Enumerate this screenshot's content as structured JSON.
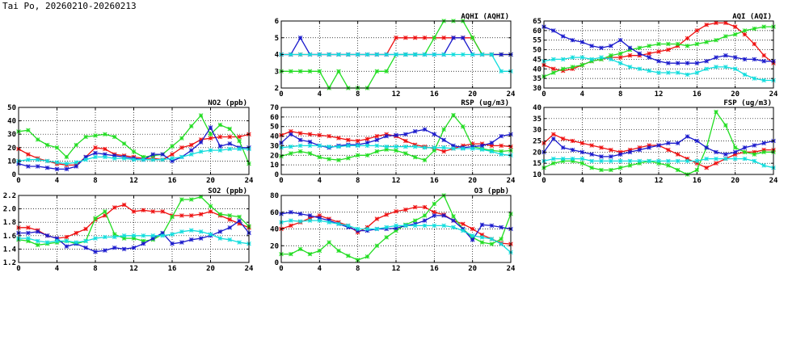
{
  "header": {
    "title": "Tai Po, 20260210-20260213"
  },
  "colors": {
    "red": "#ee1111",
    "green": "#22dd22",
    "blue": "#1a1acc",
    "cyan": "#11dddd"
  },
  "chart_data": [
    {
      "id": "aqhi",
      "type": "line",
      "title": "AQHI (AQHI)",
      "xlim": [
        0,
        24
      ],
      "ylim": [
        2,
        6
      ],
      "xticks": [
        "0",
        "4",
        "8",
        "12",
        "16",
        "20",
        "24"
      ],
      "yticks": [
        "2",
        "3",
        "4",
        "5",
        "6"
      ],
      "grid": true,
      "x": [
        0,
        1,
        2,
        3,
        4,
        5,
        6,
        7,
        8,
        9,
        10,
        11,
        12,
        13,
        14,
        15,
        16,
        17,
        18,
        19,
        20,
        21,
        22,
        23,
        24
      ],
      "series": [
        {
          "color": "red",
          "values": [
            4,
            4,
            4,
            4,
            4,
            4,
            4,
            4,
            4,
            4,
            4,
            4,
            5,
            5,
            5,
            5,
            5,
            5,
            5,
            5,
            5,
            4,
            4,
            4,
            4
          ]
        },
        {
          "color": "green",
          "values": [
            3,
            3,
            3,
            3,
            3,
            2,
            3,
            2,
            2,
            2,
            3,
            3,
            4,
            4,
            4,
            4,
            5,
            6,
            6,
            6,
            5,
            4,
            4,
            4,
            4
          ]
        },
        {
          "color": "blue",
          "values": [
            4,
            4,
            5,
            4,
            4,
            4,
            4,
            4,
            4,
            4,
            4,
            4,
            4,
            4,
            4,
            4,
            4,
            4,
            5,
            5,
            4,
            4,
            4,
            4,
            4
          ]
        },
        {
          "color": "cyan",
          "values": [
            4,
            4,
            4,
            4,
            4,
            4,
            4,
            4,
            4,
            4,
            4,
            4,
            4,
            4,
            4,
            4,
            4,
            4,
            4,
            4,
            4,
            4,
            4,
            3,
            3
          ]
        }
      ]
    },
    {
      "id": "aqi",
      "type": "line",
      "title": "AQI (AQI)",
      "xlim": [
        0,
        24
      ],
      "ylim": [
        30,
        65
      ],
      "xticks": [
        "0",
        "4",
        "8",
        "12",
        "16",
        "20",
        "24"
      ],
      "yticks": [
        "30",
        "35",
        "40",
        "45",
        "50",
        "55",
        "60",
        "65"
      ],
      "grid": true,
      "x": [
        0,
        1,
        2,
        3,
        4,
        5,
        6,
        7,
        8,
        9,
        10,
        11,
        12,
        13,
        14,
        15,
        16,
        17,
        18,
        19,
        20,
        21,
        22,
        23,
        24
      ],
      "series": [
        {
          "color": "red",
          "values": [
            42,
            40,
            39,
            40,
            42,
            44,
            45,
            46,
            46,
            47,
            47,
            48,
            49,
            50,
            52,
            56,
            60,
            63,
            64,
            64,
            62,
            58,
            53,
            47,
            43
          ]
        },
        {
          "color": "green",
          "values": [
            36,
            38,
            40,
            41,
            42,
            44,
            45,
            47,
            48,
            50,
            51,
            52,
            53,
            53,
            53,
            52,
            53,
            54,
            55,
            57,
            58,
            60,
            61,
            62,
            62
          ]
        },
        {
          "color": "blue",
          "values": [
            62,
            60,
            57,
            55,
            54,
            52,
            51,
            52,
            55,
            51,
            48,
            46,
            44,
            43,
            43,
            43,
            43,
            44,
            46,
            47,
            46,
            45,
            45,
            44,
            44
          ]
        },
        {
          "color": "cyan",
          "values": [
            44,
            45,
            45,
            46,
            46,
            45,
            46,
            45,
            43,
            41,
            40,
            39,
            38,
            38,
            38,
            37,
            38,
            40,
            41,
            41,
            40,
            37,
            35,
            34,
            34
          ]
        }
      ]
    },
    {
      "id": "no2",
      "type": "line",
      "title": "NO2 (ppb)",
      "xlim": [
        0,
        24
      ],
      "ylim": [
        0,
        50
      ],
      "xticks": [
        "0",
        "4",
        "8",
        "12",
        "16",
        "20",
        "24"
      ],
      "yticks": [
        "0",
        "10",
        "20",
        "30",
        "40",
        "50"
      ],
      "grid": true,
      "x": [
        0,
        1,
        2,
        3,
        4,
        5,
        6,
        7,
        8,
        9,
        10,
        11,
        12,
        13,
        14,
        15,
        16,
        17,
        18,
        19,
        20,
        21,
        22,
        23,
        24
      ],
      "series": [
        {
          "color": "red",
          "values": [
            19,
            15,
            12,
            10,
            8,
            7,
            7,
            13,
            20,
            19,
            15,
            14,
            13,
            12,
            12,
            11,
            15,
            20,
            22,
            26,
            27,
            28,
            28,
            28,
            30
          ]
        },
        {
          "color": "green",
          "values": [
            32,
            33,
            26,
            22,
            20,
            13,
            22,
            28,
            29,
            30,
            28,
            23,
            17,
            13,
            14,
            15,
            21,
            27,
            36,
            44,
            30,
            37,
            34,
            25,
            8
          ]
        },
        {
          "color": "blue",
          "values": [
            8,
            6,
            6,
            5,
            4,
            4,
            6,
            13,
            16,
            15,
            14,
            13,
            12,
            11,
            15,
            15,
            10,
            13,
            18,
            24,
            35,
            21,
            23,
            20,
            20
          ]
        },
        {
          "color": "cyan",
          "values": [
            10,
            11,
            11,
            10,
            9,
            8,
            9,
            11,
            13,
            13,
            12,
            12,
            11,
            11,
            11,
            11,
            12,
            13,
            15,
            17,
            18,
            18,
            19,
            19,
            19
          ]
        }
      ]
    },
    {
      "id": "rsp",
      "type": "line",
      "title": "RSP (ug/m3)",
      "xlim": [
        0,
        24
      ],
      "ylim": [
        0,
        70
      ],
      "xticks": [
        "0",
        "4",
        "8",
        "12",
        "16",
        "20",
        "24"
      ],
      "yticks": [
        "0",
        "10",
        "20",
        "30",
        "40",
        "50",
        "60",
        "70"
      ],
      "grid": true,
      "x": [
        0,
        1,
        2,
        3,
        4,
        5,
        6,
        7,
        8,
        9,
        10,
        11,
        12,
        13,
        14,
        15,
        16,
        17,
        18,
        19,
        20,
        21,
        22,
        23,
        24
      ],
      "series": [
        {
          "color": "red",
          "values": [
            41,
            45,
            43,
            42,
            41,
            40,
            38,
            36,
            35,
            37,
            40,
            42,
            40,
            35,
            31,
            29,
            27,
            24,
            27,
            30,
            32,
            32,
            30,
            30,
            29
          ]
        },
        {
          "color": "green",
          "values": [
            19,
            22,
            24,
            22,
            18,
            16,
            15,
            17,
            20,
            20,
            24,
            26,
            25,
            22,
            18,
            15,
            25,
            47,
            62,
            50,
            29,
            27,
            25,
            24,
            25
          ]
        },
        {
          "color": "blue",
          "values": [
            33,
            42,
            36,
            34,
            30,
            28,
            30,
            31,
            31,
            33,
            36,
            40,
            41,
            42,
            45,
            47,
            42,
            36,
            30,
            28,
            29,
            30,
            33,
            40,
            42
          ]
        },
        {
          "color": "cyan",
          "values": [
            28,
            29,
            30,
            30,
            30,
            29,
            29,
            30,
            30,
            30,
            30,
            29,
            29,
            29,
            29,
            28,
            28,
            28,
            27,
            27,
            27,
            26,
            24,
            21,
            20
          ]
        }
      ]
    },
    {
      "id": "fsp",
      "type": "line",
      "title": "FSP (ug/m3)",
      "xlim": [
        0,
        24
      ],
      "ylim": [
        10,
        40
      ],
      "xticks": [
        "0",
        "4",
        "8",
        "12",
        "16",
        "20",
        "24"
      ],
      "yticks": [
        "10",
        "15",
        "20",
        "25",
        "30",
        "35",
        "40"
      ],
      "grid": true,
      "x": [
        0,
        1,
        2,
        3,
        4,
        5,
        6,
        7,
        8,
        9,
        10,
        11,
        12,
        13,
        14,
        15,
        16,
        17,
        18,
        19,
        20,
        21,
        22,
        23,
        24
      ],
      "series": [
        {
          "color": "red",
          "values": [
            24,
            28,
            26,
            25,
            24,
            23,
            22,
            21,
            20,
            21,
            22,
            23,
            23,
            21,
            19,
            17,
            15,
            13,
            15,
            17,
            19,
            20,
            20,
            21,
            21
          ]
        },
        {
          "color": "green",
          "values": [
            13,
            15,
            16,
            16,
            15,
            13,
            12,
            12,
            13,
            14,
            15,
            16,
            15,
            14,
            12,
            10,
            12,
            22,
            38,
            32,
            22,
            20,
            19,
            20,
            20
          ]
        },
        {
          "color": "blue",
          "values": [
            20,
            26,
            22,
            21,
            20,
            19,
            18,
            18,
            19,
            20,
            21,
            22,
            23,
            24,
            24,
            27,
            25,
            22,
            20,
            19,
            20,
            22,
            23,
            24,
            25
          ]
        },
        {
          "color": "cyan",
          "values": [
            16,
            17,
            17,
            17,
            17,
            16,
            16,
            16,
            16,
            16,
            16,
            16,
            16,
            16,
            16,
            16,
            16,
            17,
            17,
            17,
            17,
            17,
            16,
            14,
            13
          ]
        }
      ]
    },
    {
      "id": "so2",
      "type": "line",
      "title": "SO2 (ppb)",
      "xlim": [
        0,
        24
      ],
      "ylim": [
        1.2,
        2.2
      ],
      "xticks": [
        "0",
        "4",
        "8",
        "12",
        "16",
        "20",
        "24"
      ],
      "yticks": [
        "1.2",
        "1.4",
        "1.6",
        "1.8",
        "2.0",
        "2.2"
      ],
      "grid": true,
      "x": [
        0,
        1,
        2,
        3,
        4,
        5,
        6,
        7,
        8,
        9,
        10,
        11,
        12,
        13,
        14,
        15,
        16,
        17,
        18,
        19,
        20,
        21,
        22,
        23,
        24
      ],
      "series": [
        {
          "color": "red",
          "values": [
            1.72,
            1.72,
            1.68,
            1.6,
            1.56,
            1.58,
            1.64,
            1.7,
            1.84,
            1.9,
            2.02,
            2.06,
            1.96,
            1.98,
            1.96,
            1.96,
            1.9,
            1.9,
            1.9,
            1.92,
            1.96,
            1.9,
            1.84,
            1.78,
            1.72
          ]
        },
        {
          "color": "green",
          "values": [
            1.54,
            1.52,
            1.46,
            1.48,
            1.5,
            1.52,
            1.48,
            1.52,
            1.86,
            1.96,
            1.62,
            1.56,
            1.56,
            1.52,
            1.54,
            1.62,
            1.88,
            2.14,
            2.14,
            2.18,
            2.04,
            1.92,
            1.9,
            1.88,
            1.74
          ]
        },
        {
          "color": "blue",
          "values": [
            1.64,
            1.64,
            1.66,
            1.6,
            1.56,
            1.44,
            1.48,
            1.42,
            1.36,
            1.38,
            1.42,
            1.4,
            1.42,
            1.48,
            1.56,
            1.64,
            1.48,
            1.5,
            1.54,
            1.56,
            1.6,
            1.66,
            1.72,
            1.82,
            1.64
          ]
        },
        {
          "color": "cyan",
          "values": [
            1.56,
            1.56,
            1.52,
            1.5,
            1.52,
            1.52,
            1.5,
            1.52,
            1.56,
            1.58,
            1.58,
            1.6,
            1.6,
            1.6,
            1.6,
            1.6,
            1.62,
            1.66,
            1.68,
            1.66,
            1.62,
            1.56,
            1.54,
            1.5,
            1.48
          ]
        }
      ]
    },
    {
      "id": "o3",
      "type": "line",
      "title": "O3 (ppb)",
      "xlim": [
        0,
        24
      ],
      "ylim": [
        0,
        80
      ],
      "xticks": [
        "0",
        "4",
        "8",
        "12",
        "16",
        "20",
        "24"
      ],
      "yticks": [
        "0",
        "20",
        "40",
        "60",
        "80"
      ],
      "grid": true,
      "x": [
        0,
        1,
        2,
        3,
        4,
        5,
        6,
        7,
        8,
        9,
        10,
        11,
        12,
        13,
        14,
        15,
        16,
        17,
        18,
        19,
        20,
        21,
        22,
        23,
        24
      ],
      "series": [
        {
          "color": "red",
          "values": [
            40,
            44,
            48,
            53,
            56,
            52,
            48,
            44,
            36,
            42,
            52,
            57,
            61,
            63,
            66,
            66,
            60,
            57,
            50,
            46,
            40,
            33,
            28,
            23,
            22
          ]
        },
        {
          "color": "green",
          "values": [
            10,
            10,
            16,
            10,
            14,
            24,
            14,
            8,
            3,
            7,
            20,
            30,
            38,
            45,
            50,
            56,
            70,
            80,
            55,
            40,
            30,
            24,
            22,
            28,
            58
          ]
        },
        {
          "color": "blue",
          "values": [
            58,
            60,
            58,
            56,
            53,
            50,
            46,
            42,
            38,
            38,
            40,
            40,
            41,
            44,
            46,
            50,
            56,
            56,
            50,
            40,
            27,
            45,
            44,
            42,
            40
          ]
        },
        {
          "color": "cyan",
          "values": [
            48,
            50,
            49,
            50,
            50,
            48,
            46,
            44,
            40,
            40,
            40,
            42,
            44,
            44,
            44,
            44,
            44,
            44,
            42,
            38,
            32,
            30,
            28,
            22,
            12
          ]
        }
      ]
    }
  ]
}
